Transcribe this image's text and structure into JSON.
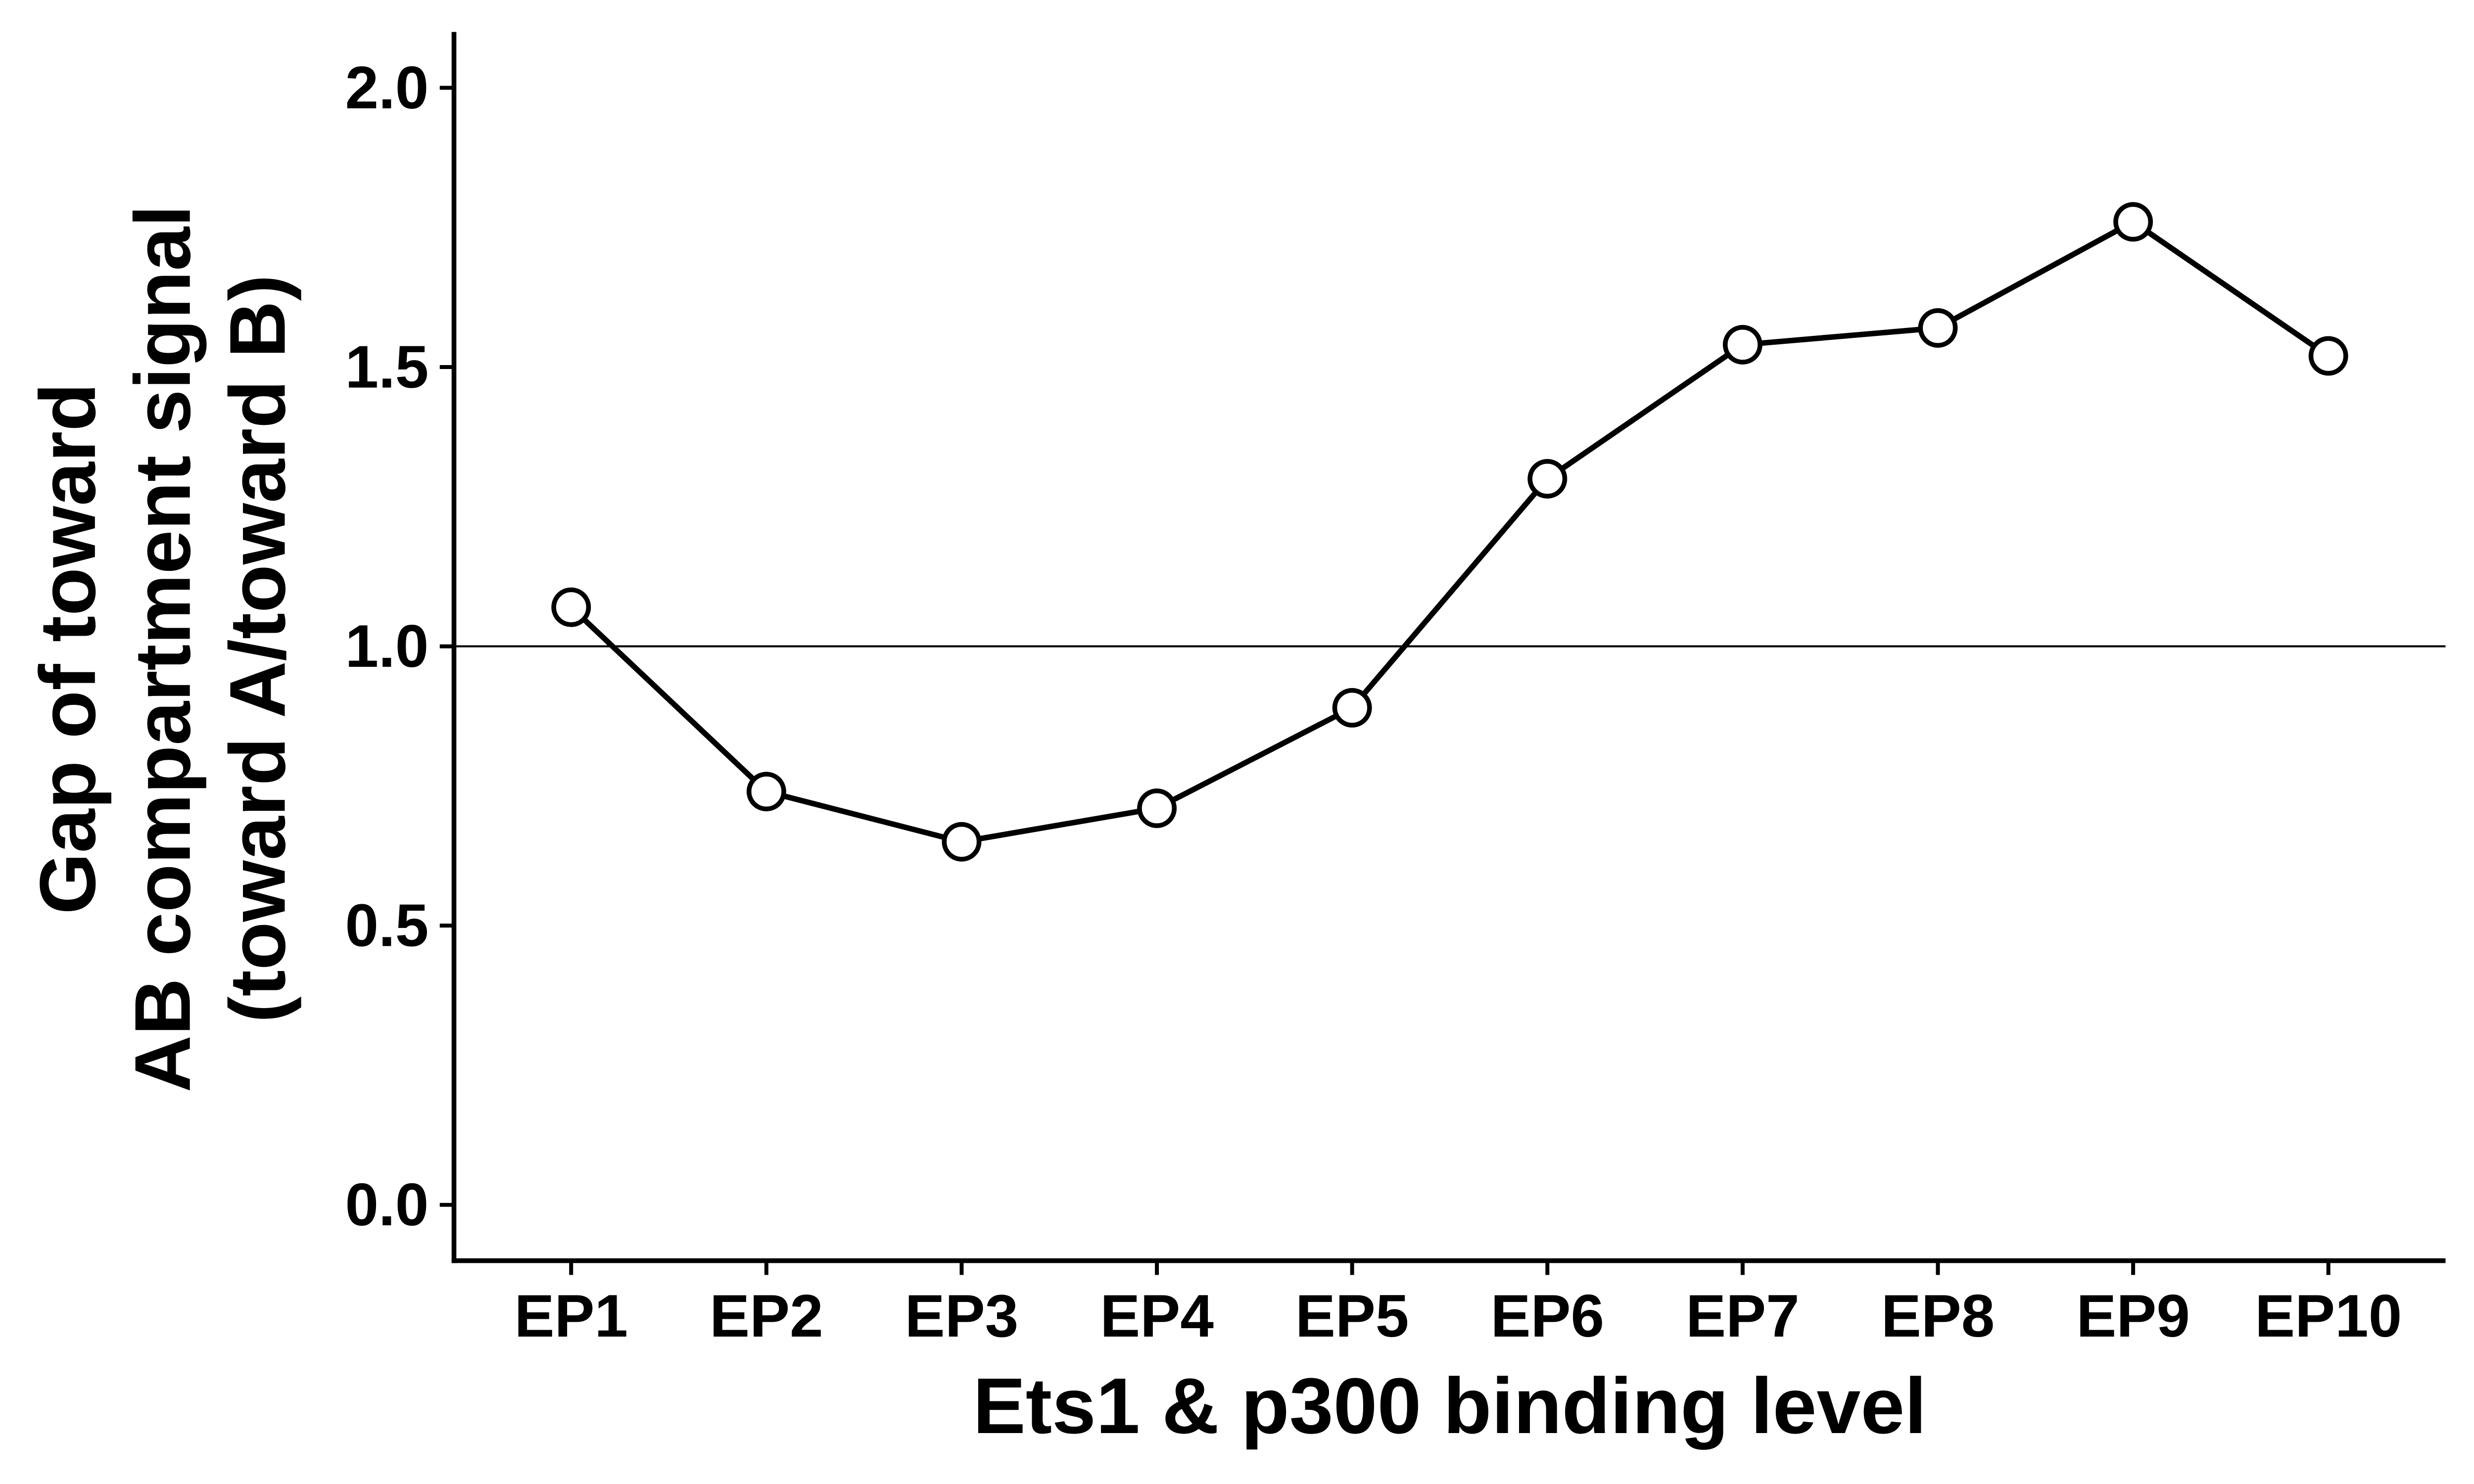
{
  "chart_data": {
    "type": "line",
    "xlabel": "Ets1 & p300 binding level",
    "ylabel": [
      "Gap of toward",
      "AB compartment signal",
      "(toward A/toward B)"
    ],
    "categories": [
      "EP1",
      "EP2",
      "EP3",
      "EP4",
      "EP5",
      "EP6",
      "EP7",
      "EP8",
      "EP9",
      "EP10"
    ],
    "series": [
      {
        "color": "#000000",
        "values": [
          1.07,
          0.74,
          0.65,
          0.71,
          0.89,
          1.3,
          1.54,
          1.57,
          1.76,
          1.52
        ]
      }
    ],
    "ylim": [
      -0.1,
      2.1
    ],
    "yticks": [
      {
        "value": 0,
        "label": "0.0"
      },
      {
        "value": 0.5,
        "label": "0.5"
      },
      {
        "value": 1,
        "label": "1.0"
      },
      {
        "value": 1.5,
        "label": "1.5"
      },
      {
        "value": 2,
        "label": "2.0"
      }
    ],
    "hline": 1,
    "grid": false
  }
}
